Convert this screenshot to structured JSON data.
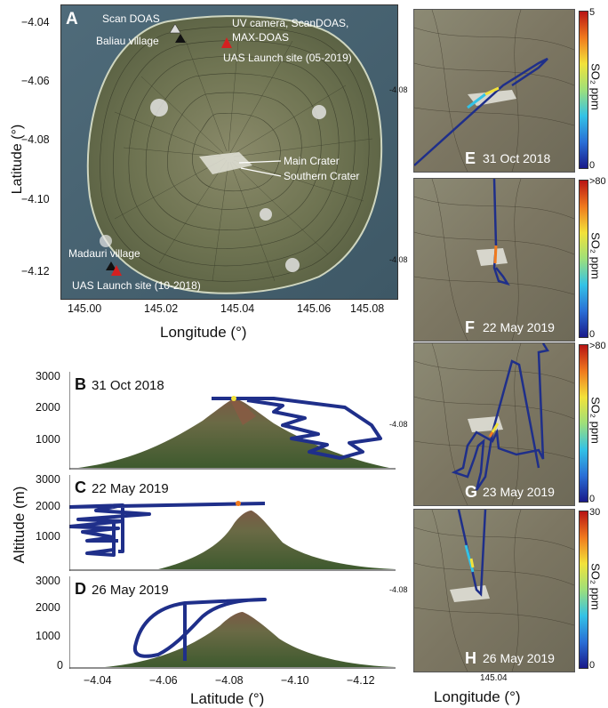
{
  "panelA": {
    "letter": "A",
    "ylabel": "Latitude (°)",
    "xlabel": "Longitude (°)",
    "yticks": [
      "−4.04",
      "−4.06",
      "−4.08",
      "−4.10",
      "−4.12"
    ],
    "xticks": [
      "145.00",
      "145.02",
      "145.04",
      "145.06",
      "145.08"
    ],
    "annotations": {
      "scan_doas": "Scan DOAS",
      "baliau": "Baliau village",
      "uv_line1": "UV camera, ScanDOAS,",
      "uv_line2": "MAX-DOAS",
      "uas_2019": "UAS Launch site (05-2019)",
      "main_crater": "Main Crater",
      "southern_crater": "Southern Crater",
      "madauri": "Madauri village",
      "uas_2018": "UAS Launch site (10-2018)"
    },
    "colors": {
      "launch_marker": "#d42020",
      "village_marker": "#111111",
      "scan_marker": "#dddddd"
    }
  },
  "profiles": {
    "ylabel": "Altitude (m)",
    "xlabel": "Latitude (°)",
    "yticks": [
      "3000",
      "2000",
      "1000",
      "0"
    ],
    "xticks": [
      "−4.04",
      "−4.06",
      "−4.08",
      "−4.10",
      "−4.12"
    ],
    "panels": [
      {
        "letter": "B",
        "date": "31 Oct 2018"
      },
      {
        "letter": "C",
        "date": "22 May 2019"
      },
      {
        "letter": "D",
        "date": "26 May 2019"
      }
    ],
    "track_color": "#1f2f8a"
  },
  "maps": {
    "ylabel_tick": "-4.08",
    "xtick": "145.04",
    "xlabel": "Longitude (°)",
    "colorbar_label": "SO₂ ppm",
    "panels": [
      {
        "letter": "E",
        "date": "31 Oct 2018",
        "cb_max": "5",
        "cb_min": "0"
      },
      {
        "letter": "F",
        "date": "22 May 2019",
        "cb_max": ">80",
        "cb_min": "0"
      },
      {
        "letter": "G",
        "date": "23 May 2019",
        "cb_max": ">80",
        "cb_min": "0"
      },
      {
        "letter": "H",
        "date": "26 May 2019",
        "cb_max": "30",
        "cb_min": "0"
      }
    ]
  }
}
